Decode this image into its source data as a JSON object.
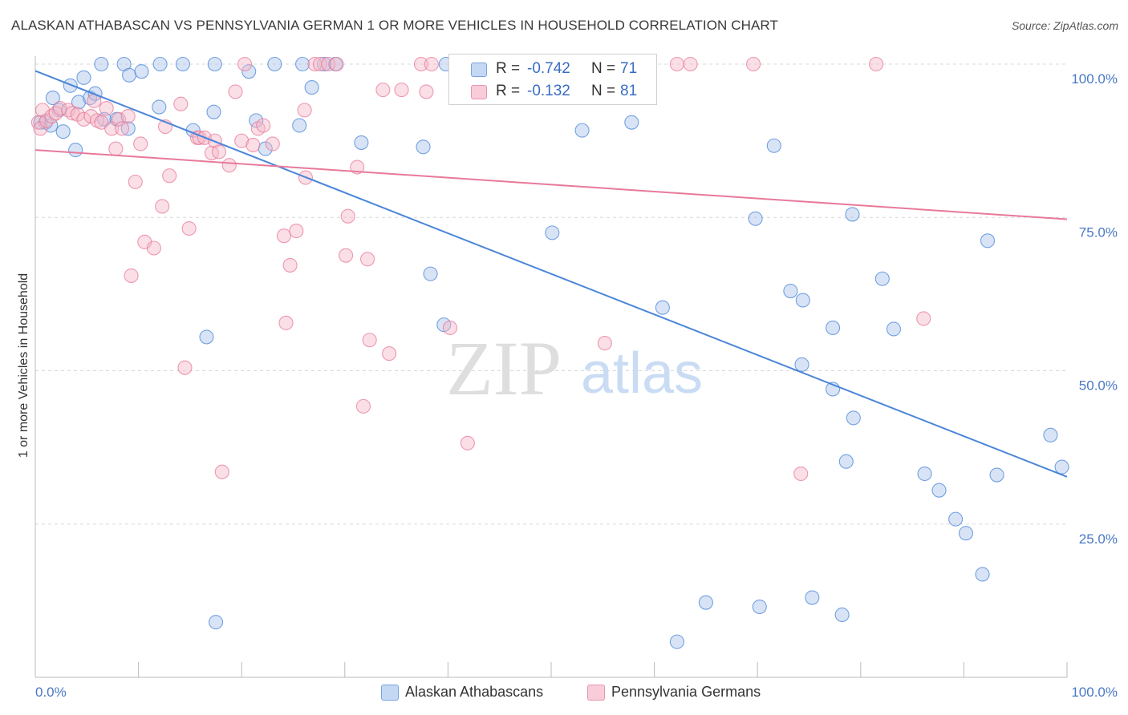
{
  "title": "ALASKAN ATHABASCAN VS PENNSYLVANIA GERMAN 1 OR MORE VEHICLES IN HOUSEHOLD CORRELATION CHART",
  "source": "Source: ZipAtlas.com",
  "watermark": {
    "zip": "ZIP",
    "atlas": "atlas"
  },
  "legend": {
    "rows": [
      {
        "r_label": "R =",
        "r_value": "-0.742",
        "n_label": "N =",
        "n_value": "71",
        "color": "#a8c4ec"
      },
      {
        "r_label": "R =",
        "r_value": "-0.132",
        "n_label": "N =",
        "n_value": "81",
        "color": "#f4b8c8"
      }
    ]
  },
  "bottom_legend": [
    "Alaskan Athabascans",
    "Pennsylvania Germans"
  ],
  "chart_data": {
    "type": "scatter",
    "title": "ALASKAN ATHABASCAN VS PENNSYLVANIA GERMAN 1 OR MORE VEHICLES IN HOUSEHOLD CORRELATION CHART",
    "xlabel": "",
    "ylabel": "1 or more Vehicles in Household",
    "xlim": [
      0,
      100
    ],
    "ylim": [
      0,
      102
    ],
    "x_tick_labels": [
      "0.0%",
      "100.0%"
    ],
    "y_tick_values": [
      25,
      50,
      75,
      100
    ],
    "y_tick_labels": [
      "25.0%",
      "50.0%",
      "75.0%",
      "100.0%"
    ],
    "grid": "dashed horizontal",
    "legend_position": "top-center",
    "series": [
      {
        "name": "Alaskan Athabascans",
        "color": "#4a86d8",
        "fill": "#a8c4ec",
        "trend": {
          "x": [
            0,
            100
          ],
          "y": [
            98.9,
            32.7
          ]
        },
        "points": [
          [
            0.5,
            90.5
          ],
          [
            1.0,
            90.5
          ],
          [
            1.5,
            90.0
          ],
          [
            1.7,
            94.5
          ],
          [
            2.3,
            92.5
          ],
          [
            2.7,
            89.0
          ],
          [
            3.4,
            96.5
          ],
          [
            3.9,
            86.0
          ],
          [
            4.2,
            93.8
          ],
          [
            4.7,
            97.8
          ],
          [
            5.3,
            94.5
          ],
          [
            5.8,
            95.2
          ],
          [
            6.4,
            100.0
          ],
          [
            6.7,
            91.0
          ],
          [
            7.9,
            91.0
          ],
          [
            8.6,
            100.0
          ],
          [
            9.1,
            98.2
          ],
          [
            9.0,
            89.5
          ],
          [
            10.3,
            98.8
          ],
          [
            12.1,
            100.0
          ],
          [
            12.0,
            93.0
          ],
          [
            14.3,
            100.0
          ],
          [
            15.3,
            89.2
          ],
          [
            16.6,
            55.5
          ],
          [
            17.3,
            92.2
          ],
          [
            17.5,
            9.0
          ],
          [
            17.4,
            100.0
          ],
          [
            20.7,
            98.8
          ],
          [
            21.4,
            90.8
          ],
          [
            22.3,
            86.2
          ],
          [
            23.2,
            100.0
          ],
          [
            25.6,
            90.0
          ],
          [
            25.9,
            100.0
          ],
          [
            26.8,
            96.2
          ],
          [
            28.0,
            100.0
          ],
          [
            29.1,
            100.0
          ],
          [
            31.6,
            87.2
          ],
          [
            37.6,
            86.5
          ],
          [
            38.3,
            65.8
          ],
          [
            39.6,
            57.5
          ],
          [
            39.8,
            100.0
          ],
          [
            50.1,
            72.5
          ],
          [
            53.0,
            89.2
          ],
          [
            57.8,
            90.5
          ],
          [
            60.8,
            60.3
          ],
          [
            62.2,
            5.8
          ],
          [
            65.0,
            12.2
          ],
          [
            69.8,
            74.8
          ],
          [
            70.2,
            11.5
          ],
          [
            71.6,
            86.7
          ],
          [
            73.2,
            63.0
          ],
          [
            74.4,
            61.5
          ],
          [
            74.3,
            51.0
          ],
          [
            75.3,
            13.0
          ],
          [
            77.3,
            47.0
          ],
          [
            77.3,
            57.0
          ],
          [
            78.2,
            10.2
          ],
          [
            78.6,
            35.2
          ],
          [
            79.2,
            75.5
          ],
          [
            79.3,
            42.3
          ],
          [
            82.1,
            65.0
          ],
          [
            83.2,
            56.8
          ],
          [
            86.2,
            33.2
          ],
          [
            87.6,
            30.5
          ],
          [
            89.2,
            25.8
          ],
          [
            90.2,
            23.5
          ],
          [
            91.8,
            16.8
          ],
          [
            92.3,
            71.2
          ],
          [
            93.2,
            33.0
          ],
          [
            98.4,
            39.5
          ],
          [
            99.5,
            34.3
          ]
        ]
      },
      {
        "name": "Pennsylvania Germans",
        "color": "#e8799a",
        "fill": "#f4b8c8",
        "trend": {
          "x": [
            0,
            100
          ],
          "y": [
            86.0,
            74.7
          ]
        },
        "points": [
          [
            0.3,
            90.5
          ],
          [
            0.5,
            89.5
          ],
          [
            0.7,
            92.5
          ],
          [
            1.1,
            90.8
          ],
          [
            1.6,
            91.5
          ],
          [
            2.0,
            92.0
          ],
          [
            2.4,
            92.8
          ],
          [
            3.2,
            92.5
          ],
          [
            3.6,
            92.0
          ],
          [
            4.1,
            91.8
          ],
          [
            4.7,
            91.0
          ],
          [
            5.4,
            91.5
          ],
          [
            5.7,
            94.0
          ],
          [
            6.0,
            90.8
          ],
          [
            6.4,
            90.5
          ],
          [
            6.9,
            92.8
          ],
          [
            7.4,
            89.5
          ],
          [
            7.8,
            86.2
          ],
          [
            8.1,
            91.0
          ],
          [
            8.4,
            89.5
          ],
          [
            9.0,
            91.5
          ],
          [
            9.3,
            65.5
          ],
          [
            9.7,
            80.8
          ],
          [
            10.2,
            87.0
          ],
          [
            10.6,
            71.0
          ],
          [
            11.5,
            70.0
          ],
          [
            12.3,
            76.8
          ],
          [
            12.6,
            89.8
          ],
          [
            13.0,
            81.8
          ],
          [
            14.1,
            93.5
          ],
          [
            14.5,
            50.5
          ],
          [
            14.9,
            73.2
          ],
          [
            15.7,
            88.0
          ],
          [
            15.9,
            88.0
          ],
          [
            16.4,
            88.0
          ],
          [
            17.1,
            85.5
          ],
          [
            17.4,
            87.5
          ],
          [
            17.8,
            85.7
          ],
          [
            18.1,
            33.5
          ],
          [
            18.8,
            83.5
          ],
          [
            19.4,
            95.5
          ],
          [
            20.0,
            87.5
          ],
          [
            20.3,
            100.0
          ],
          [
            21.1,
            86.8
          ],
          [
            21.6,
            89.5
          ],
          [
            22.1,
            90.0
          ],
          [
            23.0,
            87.0
          ],
          [
            24.1,
            72.0
          ],
          [
            24.3,
            57.8
          ],
          [
            24.7,
            67.2
          ],
          [
            25.3,
            72.8
          ],
          [
            26.2,
            81.5
          ],
          [
            26.1,
            92.5
          ],
          [
            27.1,
            100.0
          ],
          [
            27.6,
            100.0
          ],
          [
            28.4,
            100.0
          ],
          [
            29.2,
            100.0
          ],
          [
            30.3,
            75.2
          ],
          [
            30.1,
            68.8
          ],
          [
            31.2,
            83.2
          ],
          [
            31.8,
            44.2
          ],
          [
            32.2,
            68.2
          ],
          [
            32.4,
            55.0
          ],
          [
            33.7,
            95.8
          ],
          [
            34.3,
            52.8
          ],
          [
            35.5,
            95.8
          ],
          [
            37.4,
            100.0
          ],
          [
            37.9,
            95.5
          ],
          [
            38.4,
            100.0
          ],
          [
            40.2,
            57.0
          ],
          [
            41.9,
            38.2
          ],
          [
            44.3,
            98.8
          ],
          [
            50.6,
            100.0
          ],
          [
            55.2,
            54.5
          ],
          [
            58.4,
            100.0
          ],
          [
            62.2,
            100.0
          ],
          [
            63.5,
            100.0
          ],
          [
            69.6,
            100.0
          ],
          [
            74.2,
            33.2
          ],
          [
            81.5,
            100.0
          ],
          [
            86.1,
            58.5
          ]
        ]
      }
    ]
  }
}
